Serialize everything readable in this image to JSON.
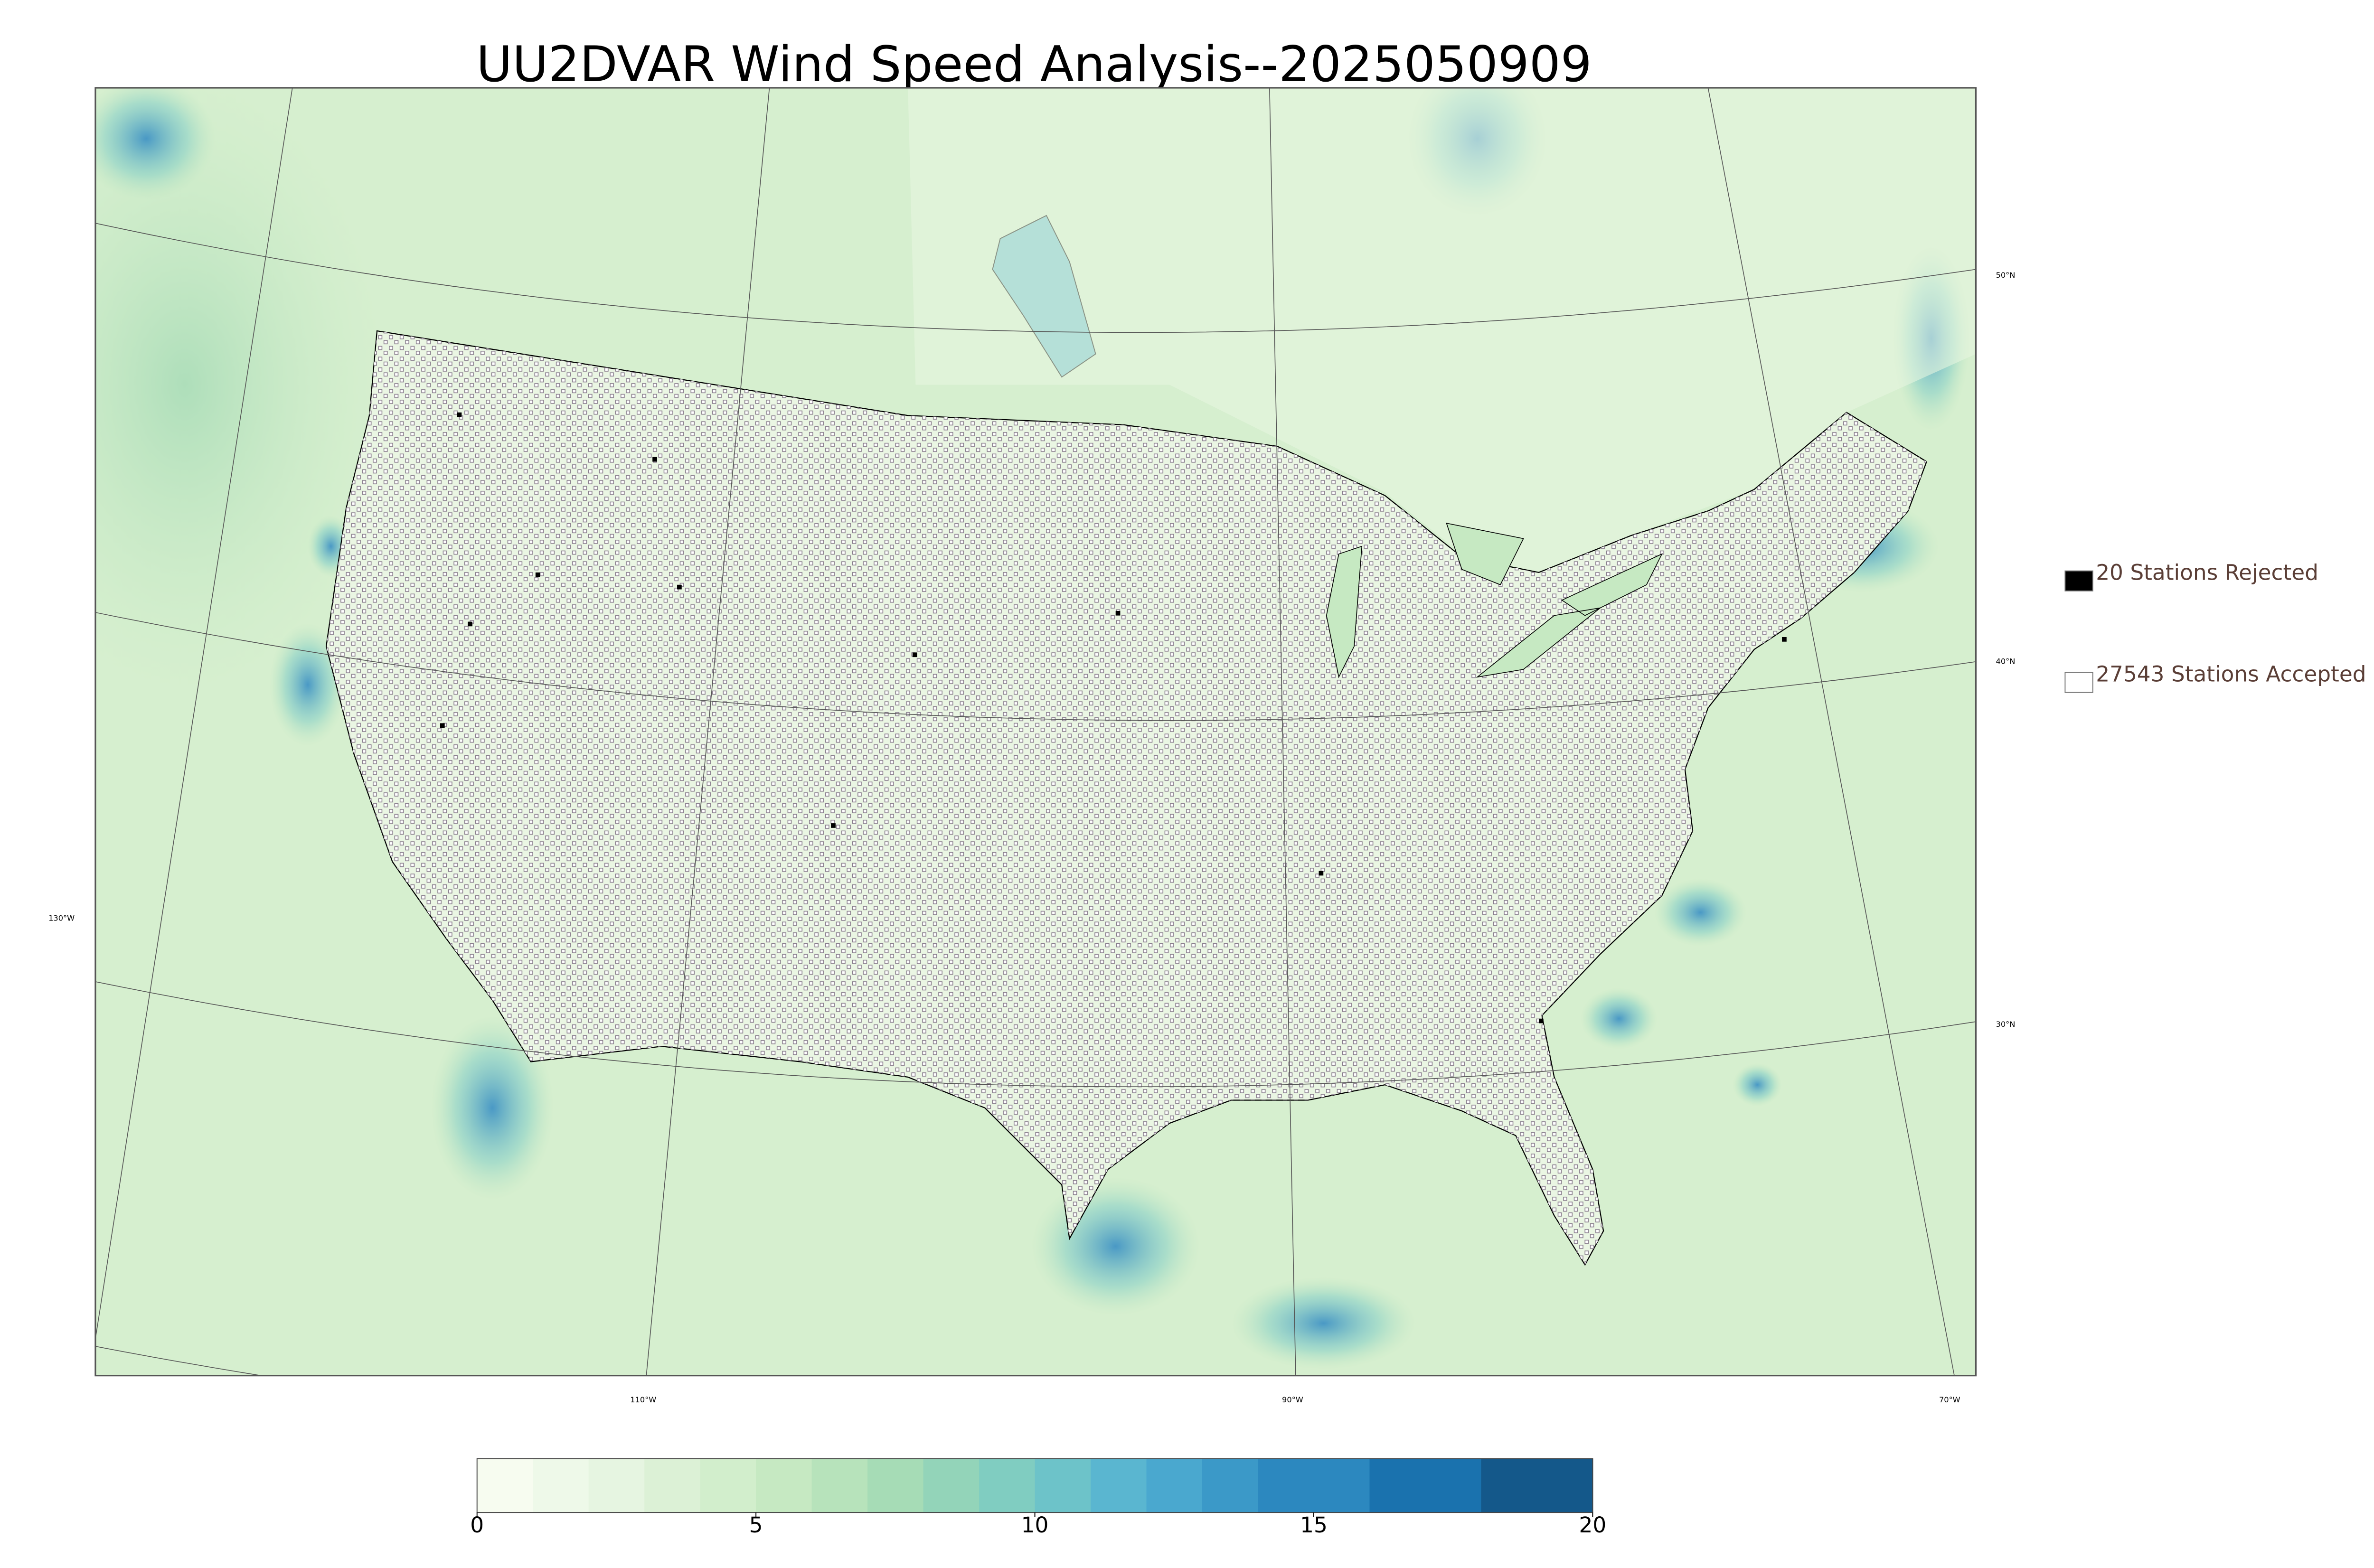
{
  "header": {
    "title": "UU2DVAR Wind Speed Analysis--2025050909"
  },
  "legend": [
    {
      "label": "20 Stations Rejected",
      "color": "#000000"
    },
    {
      "label": "27543 Stations Accepted",
      "color": "#ffffff"
    }
  ],
  "map": {
    "lat_labels": [
      "50°N",
      "40°N",
      "30°N"
    ],
    "lon_labels": [
      "130°W",
      "110°W",
      "90°W",
      "70°W"
    ]
  },
  "colorbar": {
    "lim": [
      0,
      20
    ],
    "ticks": [
      0,
      5,
      10,
      15,
      20
    ],
    "levels": [
      0,
      1,
      2,
      3,
      4,
      5,
      6,
      7,
      8,
      9,
      10,
      11,
      12,
      13,
      14,
      16,
      18,
      20
    ],
    "colors": [
      "#f7fcf0",
      "#eef9e9",
      "#e6f5e1",
      "#dcf1d6",
      "#d2eecc",
      "#c6e9c2",
      "#b7e3bb",
      "#a6dcb6",
      "#93d4b9",
      "#80cdc1",
      "#6dc3c9",
      "#5ab6d0",
      "#4aa8cf",
      "#3b99c8",
      "#2c88bf",
      "#1a72ae",
      "#14588a"
    ]
  }
}
